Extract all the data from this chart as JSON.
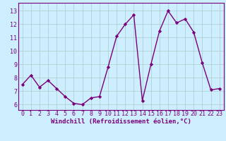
{
  "x": [
    0,
    1,
    2,
    3,
    4,
    5,
    6,
    7,
    8,
    9,
    10,
    11,
    12,
    13,
    14,
    15,
    16,
    17,
    18,
    19,
    20,
    21,
    22,
    23
  ],
  "y": [
    7.5,
    8.2,
    7.3,
    7.8,
    7.2,
    6.6,
    6.1,
    6.0,
    6.5,
    6.6,
    8.8,
    11.1,
    12.0,
    12.7,
    6.3,
    9.0,
    11.5,
    13.0,
    12.1,
    12.4,
    11.4,
    9.1,
    7.1,
    7.2
  ],
  "line_color": "#7b007b",
  "marker": "D",
  "marker_size": 2.2,
  "bg_color": "#cceeff",
  "grid_color": "#aacccc",
  "xlabel": "Windchill (Refroidissement éolien,°C)",
  "yticks": [
    6,
    7,
    8,
    9,
    10,
    11,
    12,
    13
  ],
  "xlim": [
    -0.5,
    23.5
  ],
  "ylim": [
    5.6,
    13.6
  ],
  "xticks": [
    0,
    1,
    2,
    3,
    4,
    5,
    6,
    7,
    8,
    9,
    10,
    11,
    12,
    13,
    14,
    15,
    16,
    17,
    18,
    19,
    20,
    21,
    22,
    23
  ],
  "xlabel_fontsize": 6.5,
  "tick_fontsize": 6.0,
  "line_width": 1.0
}
